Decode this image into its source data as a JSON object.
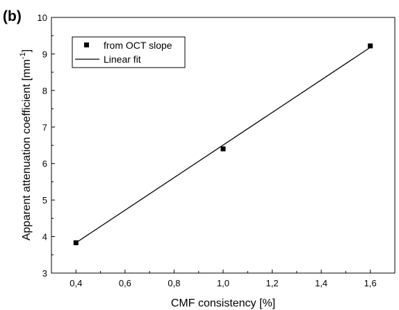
{
  "panel_label": "(b)",
  "chart_data": {
    "type": "scatter",
    "xlabel": "CMF consistency [%]",
    "ylabel": "Apparent attenuation coefficient [mm",
    "ylabel_superscript": "-1",
    "ylabel_suffix": "]",
    "xlim": [
      0.3,
      1.7
    ],
    "ylim": [
      3,
      10
    ],
    "x_ticks": [
      0.4,
      0.6,
      0.8,
      1.0,
      1.2,
      1.4,
      1.6
    ],
    "x_tick_labels": [
      "0,4",
      "0,6",
      "0,8",
      "1,0",
      "1,2",
      "1,4",
      "1,6"
    ],
    "y_ticks": [
      3,
      4,
      5,
      6,
      7,
      8,
      9,
      10
    ],
    "y_tick_labels": [
      "3",
      "4",
      "5",
      "6",
      "7",
      "8",
      "9",
      "10"
    ],
    "legend_position": "top-left",
    "grid": false,
    "series": [
      {
        "name": "from OCT slope",
        "kind": "points",
        "marker": "square",
        "color": "#000000",
        "x": [
          0.4,
          1.0,
          1.6
        ],
        "y": [
          3.83,
          6.4,
          9.22
        ]
      },
      {
        "name": "Linear fit",
        "kind": "line",
        "color": "#000000",
        "x": [
          0.4,
          1.6
        ],
        "y": [
          3.83,
          9.18
        ]
      }
    ]
  }
}
